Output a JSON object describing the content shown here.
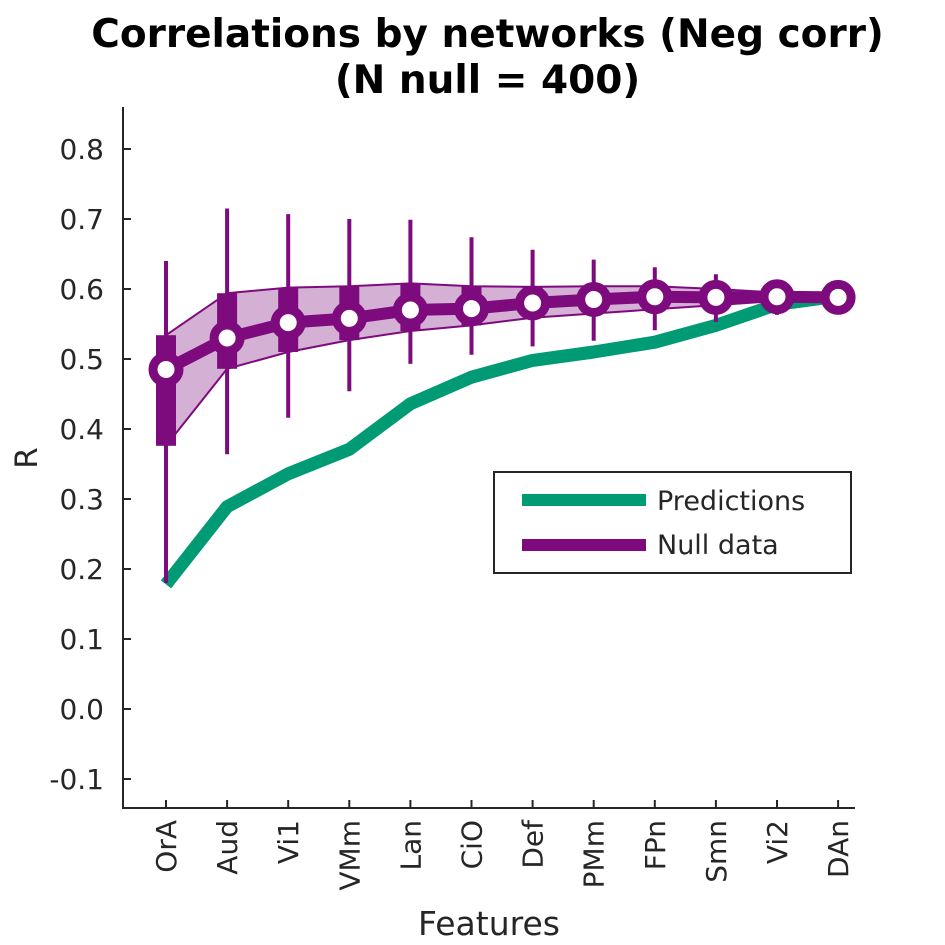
{
  "chart_data": {
    "type": "line",
    "title": "Correlations by networks (Neg corr)",
    "subtitle": "(N null = 400)",
    "xlabel": "Features",
    "ylabel": "R",
    "categories": [
      "OrA",
      "Aud",
      "Vi1",
      "VMm",
      "Lan",
      "CiO",
      "Def",
      "PMm",
      "FPn",
      "Smn",
      "Vi2",
      "DAn"
    ],
    "ylim": [
      -0.145,
      0.86
    ],
    "yticks": [
      "-0.1",
      "0.0",
      "0.1",
      "0.2",
      "0.3",
      "0.4",
      "0.5",
      "0.6",
      "0.7",
      "0.8"
    ],
    "grid": false,
    "legend": {
      "position": "center-right",
      "entries": [
        "Predictions",
        "Null data"
      ]
    },
    "series": [
      {
        "name": "Predictions",
        "color": "#009a74",
        "values": [
          0.178,
          0.289,
          0.336,
          0.371,
          0.436,
          0.474,
          0.498,
          0.51,
          0.524,
          0.548,
          0.578,
          0.59
        ]
      },
      {
        "name": "Null data",
        "color": "#7e0b7e",
        "band_color": "#d4b0d4",
        "mean": [
          0.485,
          0.53,
          0.552,
          0.558,
          0.57,
          0.572,
          0.58,
          0.585,
          0.589,
          0.588,
          0.589,
          0.588
        ],
        "iqr_low": [
          0.376,
          0.486,
          0.51,
          0.527,
          0.54,
          0.548,
          0.559,
          0.565,
          0.571,
          0.577,
          0.583,
          0.586
        ],
        "iqr_high": [
          0.534,
          0.594,
          0.602,
          0.604,
          0.608,
          0.604,
          0.603,
          0.604,
          0.604,
          0.6,
          0.595,
          0.591
        ],
        "whisker_low": [
          0.18,
          0.364,
          0.416,
          0.454,
          0.493,
          0.506,
          0.518,
          0.526,
          0.541,
          0.553,
          0.563,
          0.578
        ],
        "whisker_high": [
          0.64,
          0.715,
          0.707,
          0.7,
          0.699,
          0.674,
          0.656,
          0.642,
          0.631,
          0.621,
          0.607,
          0.598
        ]
      }
    ]
  }
}
